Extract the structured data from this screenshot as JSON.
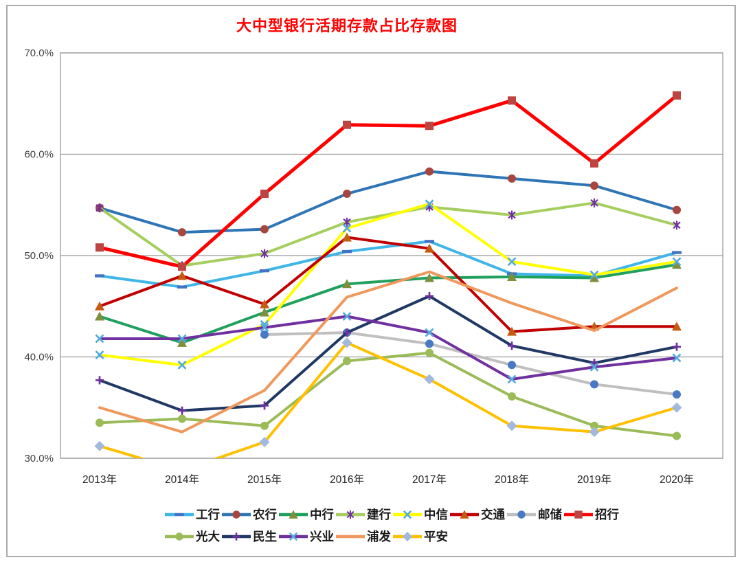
{
  "page": {
    "title_color": "#FF0000"
  },
  "chart_data": {
    "type": "line",
    "title": "大中型银行活期存款占比存款图",
    "categories": [
      "2013年",
      "2014年",
      "2015年",
      "2016年",
      "2017年",
      "2018年",
      "2019年",
      "2020年"
    ],
    "xlabel": "",
    "ylabel": "",
    "ylim": [
      30,
      70
    ],
    "ytick_step": 10,
    "ytick_labels": [
      "30.0%",
      "40.0%",
      "50.0%",
      "60.0%",
      "70.0%"
    ],
    "grid": true,
    "legend_position": "bottom",
    "legend_rows": [
      [
        "工行",
        "农行",
        "中行",
        "建行",
        "中信",
        "交通",
        "邮储"
      ],
      [
        "招行",
        "光大",
        "民生",
        "兴业",
        "浦发",
        "平安"
      ]
    ],
    "series": [
      {
        "id": "icbc",
        "name": "工行",
        "color": "#3FB5E8",
        "marker": "dash",
        "marker_color": "#4472C4",
        "values": [
          48.0,
          46.9,
          48.5,
          50.4,
          51.4,
          48.2,
          48.0,
          50.3
        ]
      },
      {
        "id": "abc",
        "name": "农行",
        "color": "#2E75B6",
        "marker": "circle",
        "marker_color": "#A6463F",
        "values": [
          54.7,
          52.3,
          52.6,
          56.1,
          58.3,
          57.6,
          56.9,
          54.5
        ]
      },
      {
        "id": "boc",
        "name": "中行",
        "color": "#1FA15D",
        "marker": "triangle",
        "marker_color": "#7F8F3E",
        "values": [
          44.0,
          41.4,
          44.4,
          47.2,
          47.8,
          47.9,
          47.8,
          49.1
        ]
      },
      {
        "id": "ccb",
        "name": "建行",
        "color": "#A6CE5F",
        "marker": "asterisk",
        "marker_color": "#7030A0",
        "values": [
          54.7,
          49.0,
          50.2,
          53.3,
          54.8,
          54.0,
          55.2,
          53.0
        ]
      },
      {
        "id": "citic",
        "name": "中信",
        "color": "#FFFF00",
        "marker": "x",
        "marker_color": "#56AADF",
        "values": [
          40.2,
          39.2,
          43.2,
          52.7,
          55.1,
          49.4,
          48.1,
          49.4
        ]
      },
      {
        "id": "bocom",
        "name": "交通",
        "color": "#C00000",
        "marker": "triangle",
        "marker_color": "#C55A11",
        "values": [
          45.0,
          48.0,
          45.2,
          51.8,
          50.7,
          42.5,
          43.0,
          43.0
        ]
      },
      {
        "id": "psbc",
        "name": "邮储",
        "color": "#BFBFBF",
        "marker": "circle",
        "marker_color": "#4879C5",
        "values": [
          null,
          null,
          42.2,
          42.4,
          41.3,
          39.2,
          37.3,
          36.3
        ]
      },
      {
        "id": "cmb",
        "name": "招行",
        "color": "#FF0000",
        "marker": "square",
        "marker_color": "#BC4542",
        "line_width": 5,
        "values": [
          50.8,
          48.9,
          56.1,
          62.9,
          62.8,
          65.3,
          59.1,
          65.8
        ]
      },
      {
        "id": "ceb",
        "name": "光大",
        "color": "#9BBB59",
        "marker": "circle",
        "marker_color": "#9BBB59",
        "values": [
          33.5,
          33.9,
          33.2,
          39.6,
          40.4,
          36.1,
          33.2,
          32.2
        ]
      },
      {
        "id": "cmbc",
        "name": "民生",
        "color": "#1F3864",
        "marker": "plus",
        "marker_color": "#7030A0",
        "values": [
          37.7,
          34.7,
          35.2,
          42.4,
          46.0,
          41.1,
          39.4,
          41.0
        ]
      },
      {
        "id": "cib",
        "name": "兴业",
        "color": "#7030A0",
        "marker": "x",
        "marker_color": "#56AADF",
        "values": [
          41.8,
          41.8,
          42.9,
          44.0,
          42.4,
          37.8,
          39.0,
          39.9
        ]
      },
      {
        "id": "spdb",
        "name": "浦发",
        "color": "#F0985C",
        "marker": "none",
        "marker_color": "#F0985C",
        "values": [
          35.0,
          32.6,
          36.7,
          45.9,
          48.4,
          45.3,
          42.6,
          46.8
        ]
      },
      {
        "id": "pingan",
        "name": "平安",
        "color": "#FFC000",
        "marker": "diamond",
        "marker_color": "#A3B8DD",
        "values": [
          31.2,
          28.8,
          31.6,
          41.4,
          37.8,
          33.2,
          32.6,
          35.0
        ]
      }
    ]
  }
}
